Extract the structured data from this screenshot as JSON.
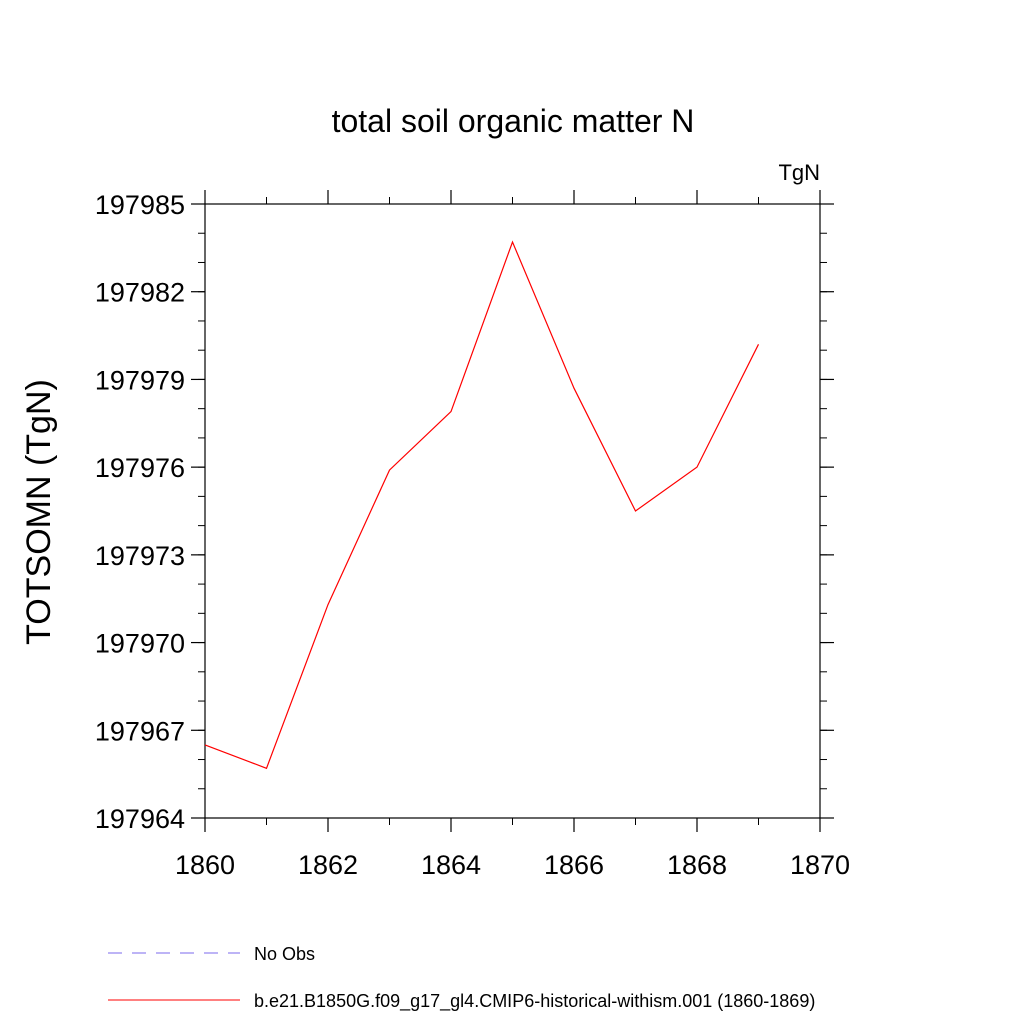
{
  "chart_data": {
    "type": "line",
    "title": "total soil organic matter N",
    "units_label": "TgN",
    "ylabel": "TOTSOMN  (TgN)",
    "xlabel": "",
    "xlim": [
      1860,
      1870
    ],
    "ylim": [
      197964,
      197985
    ],
    "xticks": [
      1860,
      1862,
      1864,
      1866,
      1868,
      1870
    ],
    "yticks": [
      197964,
      197967,
      197970,
      197973,
      197976,
      197979,
      197982,
      197985
    ],
    "x_tick_labels": [
      "1860",
      "1862",
      "1864",
      "1866",
      "1868",
      "1870"
    ],
    "y_tick_labels": [
      "197964",
      "197967",
      "197970",
      "197973",
      "197976",
      "197979",
      "197982",
      "197985"
    ],
    "series": [
      {
        "name": "b.e21.B1850G.f09_g17_gl4.CMIP6-historical-withism.001 (1860-1869)",
        "color": "#ff0000",
        "line_style": "solid",
        "x": [
          1860,
          1861,
          1862,
          1863,
          1864,
          1865,
          1866,
          1867,
          1868,
          1869
        ],
        "y": [
          197966.5,
          197965.7,
          197971.3,
          197975.9,
          197977.9,
          197983.7,
          197978.7,
          197974.5,
          197976.0,
          197980.2
        ]
      }
    ],
    "legend": {
      "placement": "bottom",
      "entries": [
        {
          "label": "No Obs",
          "color": "#7b68ee",
          "line_style": "dashed"
        },
        {
          "label": "b.e21.B1850G.f09_g17_gl4.CMIP6-historical-withism.001 (1860-1869)",
          "color": "#ff0000",
          "line_style": "solid"
        }
      ]
    },
    "grid": false
  }
}
